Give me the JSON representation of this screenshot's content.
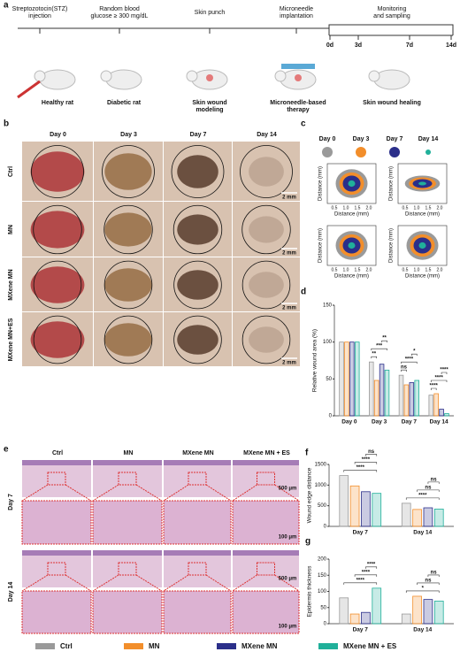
{
  "panel_labels": [
    "a",
    "b",
    "c",
    "d",
    "e",
    "f",
    "g"
  ],
  "timeline": {
    "steps": [
      {
        "lines": [
          "Streptozotocin(STZ)",
          "injection"
        ]
      },
      {
        "lines": [
          "Random blood",
          "glucose ≥ 300 mg/dL"
        ]
      },
      {
        "lines": [
          "Skin punch"
        ]
      },
      {
        "lines": [
          "Microneedle",
          "implantation"
        ]
      },
      {
        "lines": [
          "Monitoring",
          "and  sampling"
        ]
      }
    ],
    "days": [
      "0d",
      "3d",
      "7d",
      "14d"
    ],
    "captions": [
      [
        "Healthy rat"
      ],
      [
        "Diabetic rat"
      ],
      [
        "Skin wound",
        "modeling"
      ],
      [
        "Microneedle-based",
        "therapy"
      ],
      [
        "Skin wound healing"
      ]
    ]
  },
  "photos": {
    "columns": [
      "Day 0",
      "Day 3",
      "Day 7",
      "Day 14"
    ],
    "rows": [
      "Ctrl",
      "MN",
      "MXene MN",
      "MXene MN+ES"
    ],
    "scale": "2 mm"
  },
  "contours": {
    "days": [
      {
        "name": "Day 0",
        "color": "#9a9a9a"
      },
      {
        "name": "Day 3",
        "color": "#f28e2b"
      },
      {
        "name": "Day 7",
        "color": "#2b2f8a"
      },
      {
        "name": "Day 14",
        "color": "#20b09a"
      }
    ],
    "xlabel": "Distance (mm)",
    "ylabel": "Distance (mm)",
    "ticks": [
      "0.5",
      "1.0",
      "1.5",
      "2.0"
    ]
  },
  "histology": {
    "columns": [
      "Ctrl",
      "MN",
      "MXene MN",
      "MXene MN + ES"
    ],
    "rows": [
      "Day 7",
      "Day 14"
    ],
    "scale_low": "500 μm",
    "scale_high": "100 μm"
  },
  "legend": [
    {
      "name": "Ctrl",
      "color": "#9a9a9a"
    },
    {
      "name": "MN",
      "color": "#f28e2b"
    },
    {
      "name": "MXene MN",
      "color": "#2b2f8a"
    },
    {
      "name": "MXene MN + ES",
      "color": "#20b09a"
    }
  ],
  "chart_data": [
    {
      "type": "bar",
      "ylabel": "Relative wound area (%)",
      "categories": [
        "Day 0",
        "Day 3",
        "Day 7",
        "Day 14"
      ],
      "series": [
        {
          "values": [
            100,
            73,
            55,
            28
          ]
        },
        {
          "values": [
            100,
            48,
            42,
            30
          ]
        },
        {
          "values": [
            100,
            70,
            45,
            9
          ]
        },
        {
          "values": [
            100,
            62,
            48,
            3
          ]
        }
      ],
      "ylim": [
        0,
        150
      ],
      "yticks": [
        0,
        50,
        100,
        150
      ],
      "brackets": [
        {
          "label": "**",
          "category": 1,
          "from": 0,
          "to": 1
        },
        {
          "label": "***",
          "category": 1,
          "from": 0,
          "to": 3
        },
        {
          "label": "**",
          "category": 1,
          "from": 2,
          "to": 3
        },
        {
          "label": "ns",
          "category": 2,
          "from": 0,
          "to": 1
        },
        {
          "label": "****",
          "category": 2,
          "from": 0,
          "to": 3
        },
        {
          "label": "*",
          "category": 2,
          "from": 2,
          "to": 3
        },
        {
          "label": "****",
          "category": 3,
          "from": 0,
          "to": 1
        },
        {
          "label": "****",
          "category": 3,
          "from": 0,
          "to": 3
        },
        {
          "label": "****",
          "category": 3,
          "from": 2,
          "to": 3
        }
      ]
    },
    {
      "type": "bar",
      "ylabel": "Wound edge distance",
      "categories": [
        "Day 7",
        "Day 14"
      ],
      "series": [
        {
          "values": [
            1230,
            560
          ]
        },
        {
          "values": [
            980,
            410
          ]
        },
        {
          "values": [
            840,
            450
          ]
        },
        {
          "values": [
            800,
            420
          ]
        }
      ],
      "ylim": [
        0,
        1500
      ],
      "yticks": [
        0,
        500,
        1000,
        1500
      ],
      "brackets": [
        {
          "label": "****",
          "category": 0,
          "from": 0,
          "to": 3
        },
        {
          "label": "****",
          "category": 0,
          "from": 1,
          "to": 3
        },
        {
          "label": "ns",
          "category": 0,
          "from": 2,
          "to": 3
        },
        {
          "label": "****",
          "category": 1,
          "from": 0,
          "to": 3
        },
        {
          "label": "ns",
          "category": 1,
          "from": 1,
          "to": 3
        },
        {
          "label": "ns",
          "category": 1,
          "from": 2,
          "to": 3
        }
      ]
    },
    {
      "type": "bar",
      "ylabel": "Epidermis thickness",
      "categories": [
        "Day 7",
        "Day 14"
      ],
      "series": [
        {
          "values": [
            80,
            30
          ]
        },
        {
          "values": [
            30,
            85
          ]
        },
        {
          "values": [
            35,
            75
          ]
        },
        {
          "values": [
            110,
            70
          ]
        }
      ],
      "ylim": [
        0,
        200
      ],
      "yticks": [
        0,
        50,
        100,
        150,
        200
      ],
      "brackets": [
        {
          "label": "****",
          "category": 0,
          "from": 0,
          "to": 3
        },
        {
          "label": "****",
          "category": 0,
          "from": 1,
          "to": 3
        },
        {
          "label": "****",
          "category": 0,
          "from": 2,
          "to": 3
        },
        {
          "label": "*",
          "category": 1,
          "from": 0,
          "to": 3
        },
        {
          "label": "ns",
          "category": 1,
          "from": 1,
          "to": 3
        },
        {
          "label": "ns",
          "category": 1,
          "from": 2,
          "to": 3
        }
      ]
    }
  ]
}
